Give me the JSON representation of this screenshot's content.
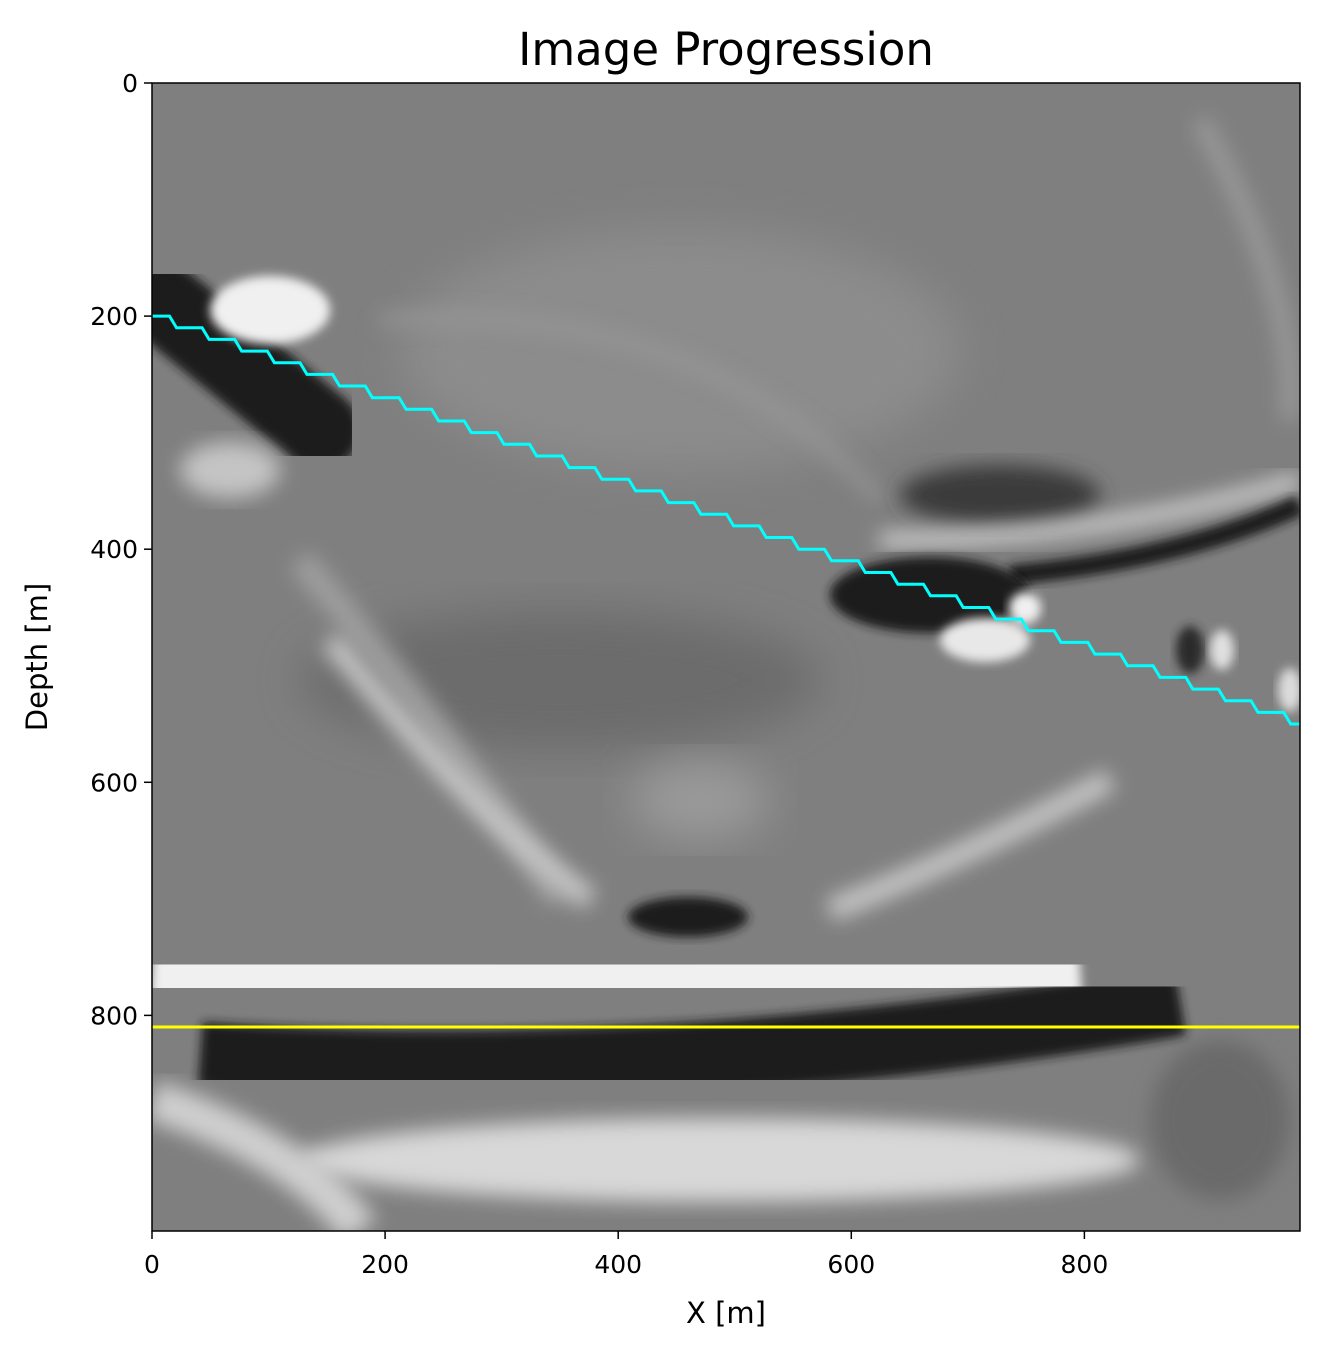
{
  "chart_data": {
    "type": "heatmap",
    "title": "Image Progression",
    "xlabel": "X [m]",
    "ylabel": "Depth [m]",
    "xlim": [
      0,
      985
    ],
    "ylim": [
      985,
      0
    ],
    "x_ticks": [
      0,
      200,
      400,
      600,
      800
    ],
    "y_ticks": [
      0,
      200,
      400,
      600,
      800
    ],
    "colormap": "gray",
    "grid": false,
    "series": [
      {
        "type": "step-line",
        "color": "#00ffff",
        "x": [
          0,
          985
        ],
        "y": [
          200,
          550
        ],
        "step": 10
      },
      {
        "type": "hline",
        "color": "#ffff00",
        "y": 810
      }
    ]
  }
}
